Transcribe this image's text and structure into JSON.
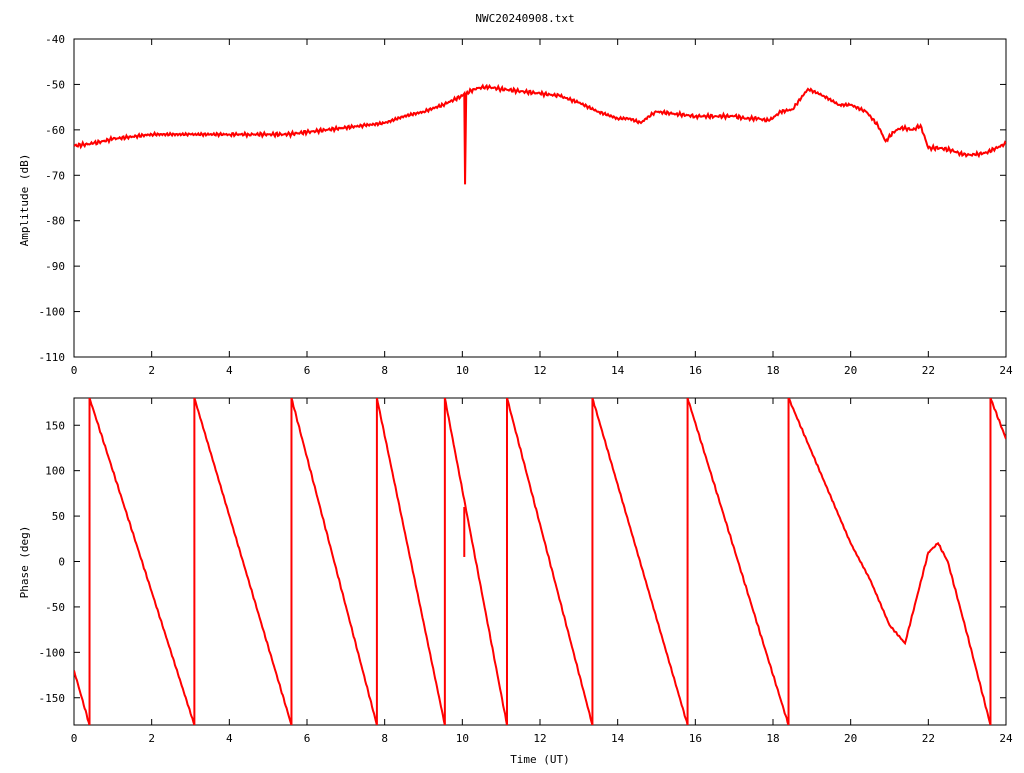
{
  "title": "NWC20240908.txt",
  "colors": {
    "series": "#ff0000",
    "axis": "#000000",
    "background": "#ffffff"
  },
  "chart_data": [
    {
      "type": "line",
      "panel": "top",
      "title": "NWC20240908.txt",
      "xlabel": "",
      "ylabel": "Amplitude (dB)",
      "xlim": [
        0,
        24
      ],
      "ylim": [
        -110,
        -40
      ],
      "xticks": [
        "0",
        "2",
        "4",
        "6",
        "8",
        "10",
        "12",
        "14",
        "16",
        "18",
        "20",
        "22",
        "24"
      ],
      "yticks": [
        "-40",
        "-50",
        "-60",
        "-70",
        "-80",
        "-90",
        "-100",
        "-110"
      ],
      "grid": false,
      "series": [
        {
          "x": [
            0,
            0.5,
            1,
            1.5,
            2,
            2.5,
            3,
            3.5,
            4,
            4.5,
            5,
            5.5,
            6,
            6.5,
            7,
            7.5,
            8,
            8.5,
            9,
            9.5,
            10,
            10.05,
            10.07,
            10.1,
            10.3,
            10.6,
            11,
            11.5,
            12,
            12.5,
            13,
            13.5,
            14,
            14.3,
            14.6,
            14.8,
            15,
            15.5,
            16,
            16.5,
            17,
            17.3,
            17.6,
            17.9,
            18.2,
            18.5,
            18.9,
            19.3,
            19.7,
            20,
            20.4,
            20.7,
            20.9,
            21.1,
            21.3,
            21.6,
            21.8,
            22,
            22.3,
            22.6,
            22.9,
            23.2,
            23.5,
            24
          ],
          "y": [
            -63.5,
            -63,
            -62,
            -61.5,
            -61,
            -61,
            -61,
            -61,
            -61,
            -61,
            -61,
            -61,
            -60.5,
            -60,
            -59.5,
            -59,
            -58.5,
            -57,
            -56,
            -54.5,
            -52.5,
            -52,
            -72,
            -52,
            -51,
            -50.5,
            -51,
            -51.5,
            -52,
            -52.5,
            -54,
            -56,
            -57.5,
            -57.5,
            -58.5,
            -57,
            -56,
            -56.5,
            -57,
            -57,
            -57,
            -57.5,
            -57.5,
            -58,
            -56,
            -55.5,
            -51,
            -52.5,
            -54.5,
            -54.5,
            -56,
            -59,
            -62.5,
            -60.5,
            -59.5,
            -60,
            -59,
            -64,
            -64,
            -64.5,
            -65.5,
            -65.5,
            -65,
            -63
          ]
        }
      ]
    },
    {
      "type": "line",
      "panel": "bottom",
      "xlabel": "Time (UT)",
      "ylabel": "Phase (deg)",
      "xlim": [
        0,
        24
      ],
      "ylim": [
        -180,
        180
      ],
      "xticks": [
        "0",
        "2",
        "4",
        "6",
        "8",
        "10",
        "12",
        "14",
        "16",
        "18",
        "20",
        "22",
        "24"
      ],
      "yticks": [
        "150",
        "100",
        "50",
        "0",
        "-50",
        "-100",
        "-150"
      ],
      "grid": false,
      "series": [
        {
          "x": [
            0,
            0.4,
            0.4,
            3.1,
            3.1,
            5.6,
            5.6,
            7.8,
            7.8,
            9.55,
            9.55,
            11.15,
            11.15,
            13.35,
            13.35,
            15.8,
            15.8,
            18.4,
            18.4,
            19,
            19.5,
            20,
            20.5,
            21,
            21.4,
            21.7,
            22,
            22.25,
            22.5,
            23,
            23.6,
            23.6,
            24
          ],
          "y": [
            -120,
            -180,
            180,
            -180,
            180,
            -180,
            180,
            -180,
            180,
            -180,
            180,
            -180,
            180,
            -180,
            180,
            -180,
            180,
            -180,
            180,
            120,
            70,
            20,
            -20,
            -70,
            -90,
            -40,
            10,
            20,
            0,
            -80,
            -180,
            180,
            135
          ]
        },
        {
          "x": [
            10.05,
            10.05
          ],
          "y": [
            60,
            5
          ]
        }
      ]
    }
  ]
}
